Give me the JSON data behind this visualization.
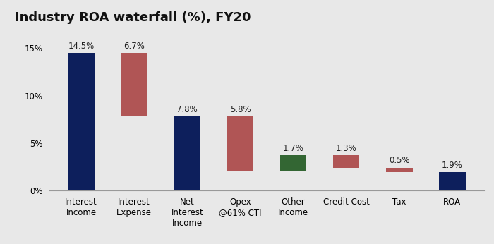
{
  "title": "Industry ROA waterfall (%), FY20",
  "categories": [
    "Interest\nIncome",
    "Interest\nExpense",
    "Net\nInterest\nIncome",
    "Opex\n@61% CTI",
    "Other\nIncome",
    "Credit Cost",
    "Tax",
    "ROA"
  ],
  "bottoms": [
    0,
    7.8,
    0,
    2.0,
    2.0,
    2.4,
    1.9,
    0
  ],
  "heights": [
    14.5,
    6.7,
    7.8,
    5.8,
    1.7,
    1.3,
    0.5,
    1.9
  ],
  "bar_colors": [
    "#0d1f5c",
    "#b05555",
    "#0d1f5c",
    "#b05555",
    "#336633",
    "#b05555",
    "#b05555",
    "#0d1f5c"
  ],
  "labels": [
    "14.5%",
    "6.7%",
    "7.8%",
    "5.8%",
    "1.7%",
    "1.3%",
    "0.5%",
    "1.9%"
  ],
  "background_color": "#e8e8e8",
  "ylim": [
    0,
    17
  ],
  "yticks": [
    0,
    5,
    10,
    15
  ],
  "ytick_labels": [
    "0%",
    "5%",
    "10%",
    "15%"
  ],
  "title_fontsize": 13,
  "label_fontsize": 8.5,
  "tick_fontsize": 8.5,
  "bar_width": 0.5
}
